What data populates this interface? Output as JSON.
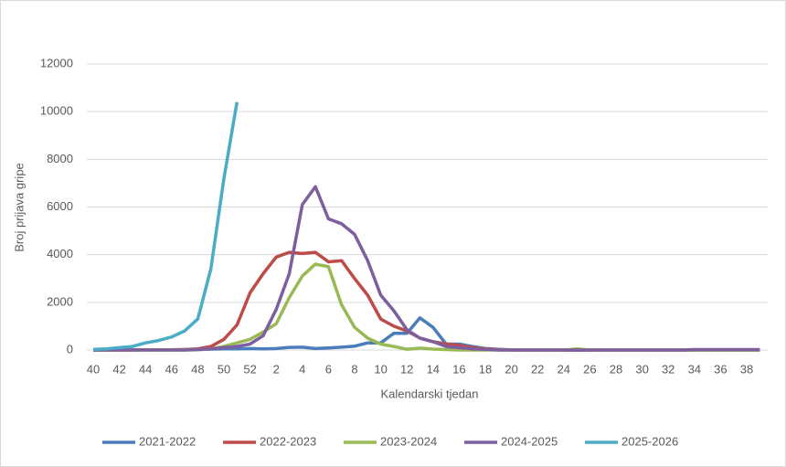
{
  "chart_data": {
    "type": "line",
    "x_label": "Kalendarski tjedan",
    "y_label": "Broj prijava gripe",
    "categories": [
      "40",
      null,
      "42",
      null,
      "44",
      null,
      "46",
      null,
      "48",
      null,
      "50",
      null,
      "52",
      null,
      "2",
      null,
      "4",
      null,
      "6",
      null,
      "8",
      null,
      "10",
      null,
      "12",
      null,
      "14",
      null,
      "16",
      null,
      "18",
      null,
      "20",
      null,
      "22",
      null,
      "24",
      null,
      "26",
      null,
      "28",
      null,
      "30",
      null,
      "32",
      null,
      "34",
      null,
      "36",
      null,
      "38",
      null
    ],
    "ylim": [
      0,
      12000
    ],
    "yticks": [
      0,
      2000,
      4000,
      6000,
      8000,
      10000,
      12000
    ],
    "grid": true,
    "legend": "bottom",
    "series": [
      {
        "name": "2021-2022",
        "color": "#4a7ebb",
        "values": [
          10,
          10,
          10,
          10,
          10,
          10,
          10,
          20,
          30,
          40,
          50,
          50,
          60,
          50,
          60,
          110,
          120,
          60,
          90,
          120,
          160,
          300,
          300,
          700,
          700,
          1350,
          950,
          250,
          250,
          150,
          60,
          30,
          10,
          0,
          0,
          0,
          0,
          0,
          0,
          0,
          0,
          0,
          0,
          0,
          0,
          0,
          0,
          0,
          0,
          0,
          0,
          0
        ]
      },
      {
        "name": "2022-2023",
        "color": "#be4b48",
        "values": [
          0,
          0,
          0,
          0,
          10,
          10,
          10,
          20,
          50,
          150,
          450,
          1050,
          2400,
          3200,
          3900,
          4100,
          4050,
          4100,
          3700,
          3750,
          3000,
          2300,
          1300,
          1000,
          800,
          500,
          350,
          250,
          200,
          100,
          50,
          20,
          0,
          0,
          0,
          0,
          0,
          0,
          0,
          0,
          0,
          0,
          0,
          0,
          0,
          0,
          0,
          0,
          0,
          0,
          0,
          0
        ]
      },
      {
        "name": "2023-2024",
        "color": "#98b954",
        "values": [
          0,
          0,
          0,
          0,
          0,
          0,
          0,
          0,
          10,
          50,
          150,
          300,
          450,
          750,
          1100,
          2200,
          3100,
          3600,
          3500,
          1900,
          950,
          500,
          250,
          150,
          30,
          80,
          40,
          20,
          0,
          0,
          0,
          0,
          0,
          0,
          0,
          0,
          0,
          50,
          0,
          0,
          0,
          0,
          0,
          0,
          0,
          0,
          0,
          0,
          0,
          0,
          0,
          0
        ]
      },
      {
        "name": "2024-2025",
        "color": "#7d5fa0",
        "values": [
          0,
          0,
          0,
          0,
          0,
          0,
          0,
          0,
          20,
          50,
          100,
          150,
          250,
          600,
          1700,
          3200,
          6100,
          6850,
          5500,
          5300,
          4850,
          3750,
          2300,
          1650,
          850,
          500,
          350,
          150,
          100,
          50,
          30,
          0,
          0,
          0,
          0,
          0,
          0,
          0,
          0,
          0,
          0,
          0,
          0,
          0,
          0,
          0,
          20,
          20,
          20,
          20,
          20,
          20
        ]
      },
      {
        "name": "2025-2026",
        "color": "#4bacc6",
        "values": [
          30,
          50,
          100,
          150,
          300,
          400,
          550,
          800,
          1300,
          3400,
          7200,
          10400,
          null,
          null,
          null,
          null,
          null,
          null,
          null,
          null,
          null,
          null,
          null,
          null,
          null,
          null,
          null,
          null,
          null,
          null,
          null,
          null,
          null,
          null,
          null,
          null,
          null,
          null,
          null,
          null,
          null,
          null,
          null,
          null,
          null,
          null,
          null,
          null,
          null,
          null,
          null,
          null
        ]
      }
    ]
  }
}
